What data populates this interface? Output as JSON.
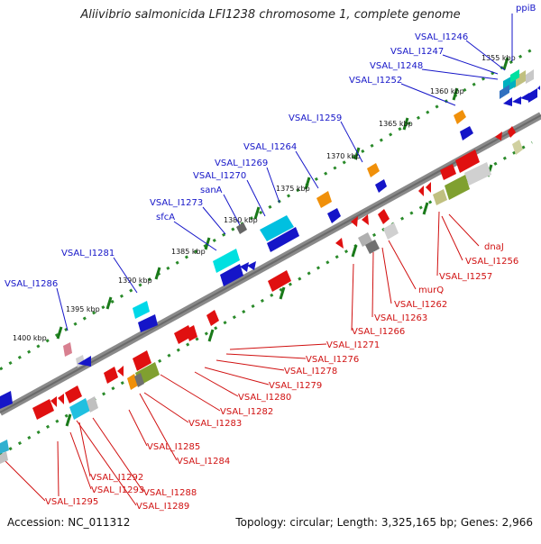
{
  "title": "Aliivibrio salmonicida LFI1238 chromosome 1, complete genome",
  "footer": {
    "accession": "Accession: NC_011312",
    "summary": "Topology: circular; Length: 3,325,165 bp; Genes: 2,966"
  },
  "colors": {
    "forward_label": "#1515c8",
    "reverse_label": "#d01010",
    "backbone": "#8a8a8a",
    "tick_dots": "#2a8a2a"
  },
  "scale_labels": [
    "1355 kbp",
    "1360 kbp",
    "1365 kbp",
    "1370 kbp",
    "1375 kbp",
    "1380 kbp",
    "1385 kbp",
    "1390 kbp",
    "1395 kbp",
    "1400 kbp"
  ],
  "forward_labels": [
    "ppiB",
    "VSAL_I1246",
    "VSAL_I1247",
    "VSAL_I1248",
    "VSAL_I1252",
    "VSAL_I1259",
    "VSAL_I1264",
    "VSAL_I1269",
    "VSAL_I1270",
    "sanA",
    "VSAL_I1273",
    "sfcA",
    "VSAL_I1281",
    "VSAL_I1286"
  ],
  "reverse_labels": [
    "dnaJ",
    "VSAL_I1256",
    "VSAL_I1257",
    "murQ",
    "VSAL_I1262",
    "VSAL_I1263",
    "VSAL_I1266",
    "VSAL_I1271",
    "VSAL_I1276",
    "VSAL_I1278",
    "VSAL_I1279",
    "VSAL_I1280",
    "VSAL_I1282",
    "VSAL_I1283",
    "VSAL_I1285",
    "VSAL_I1284",
    "VSAL_I1292",
    "VSAL_I1293",
    "VSAL_I1288",
    "VSAL_I1295",
    "VSAL_I1289"
  ]
}
